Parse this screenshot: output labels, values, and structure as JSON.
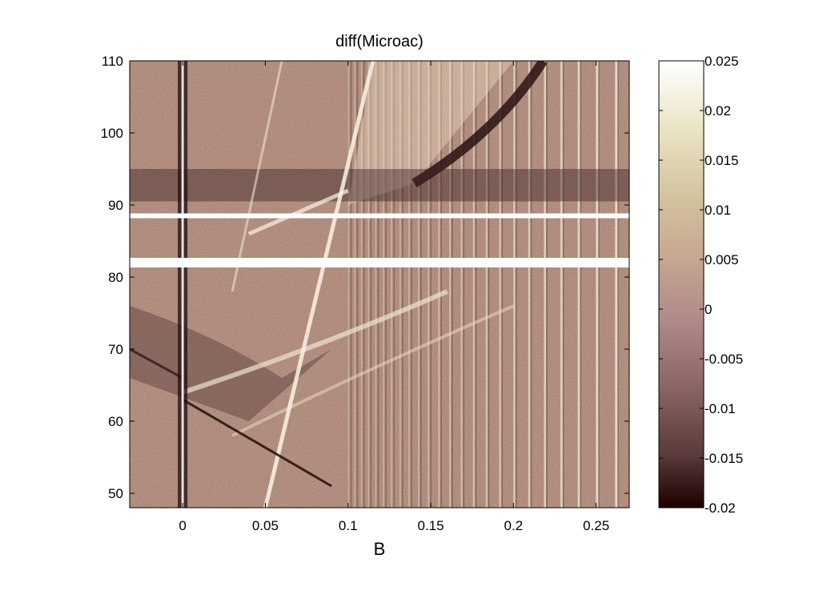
{
  "chart_data": {
    "type": "heatmap",
    "title": "diff(Microac)",
    "xlabel": "B",
    "ylabel": "",
    "xlim": [
      -0.032,
      0.27
    ],
    "ylim": [
      48,
      110
    ],
    "xticks": [
      0,
      0.05,
      0.1,
      0.15,
      0.2,
      0.25
    ],
    "xtick_labels": [
      "0",
      "0.05",
      "0.1",
      "0.15",
      "0.2",
      "0.25"
    ],
    "yticks": [
      50,
      60,
      70,
      80,
      90,
      100,
      110
    ],
    "ytick_labels": [
      "50",
      "60",
      "70",
      "80",
      "90",
      "100",
      "110"
    ],
    "colorbar": {
      "range": [
        -0.02,
        0.025
      ],
      "ticks": [
        -0.02,
        -0.015,
        -0.01,
        -0.005,
        0,
        0.005,
        0.01,
        0.015,
        0.02,
        0.025
      ],
      "tick_labels": [
        "-0.02",
        "-0.015",
        "-0.01",
        "-0.005",
        "0",
        "0.005",
        "0.01",
        "0.015",
        "0.02",
        "0.025"
      ],
      "colormap": "pink"
    },
    "grid": false,
    "features": {
      "vertical_line_B": 0,
      "periodic_stripes_start_B": 0.1,
      "gaps_y": [
        88.5,
        82
      ]
    }
  }
}
